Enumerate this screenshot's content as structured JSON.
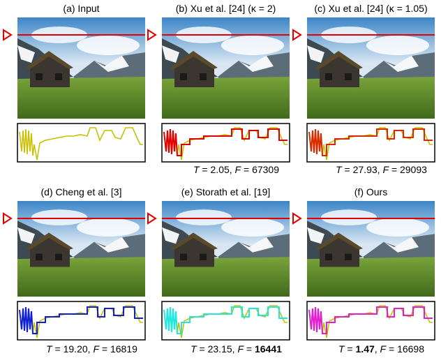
{
  "equals": " = ",
  "separator": ", ",
  "panels": [
    {
      "caption": "(a) Input",
      "curve_color": null,
      "stats": []
    },
    {
      "caption": "(b) Xu et al. [24] (κ = 2)",
      "curve_color": "#e00000",
      "stats": [
        {
          "label": "T",
          "value": "2.05",
          "bold": false
        },
        {
          "label": "F",
          "value": "67309",
          "bold": false
        }
      ]
    },
    {
      "caption": "(c) Xu et al. [24] (κ = 1.05)",
      "curve_color": "#d82a00",
      "stats": [
        {
          "label": "T",
          "value": "27.93",
          "bold": false
        },
        {
          "label": "F",
          "value": "29093",
          "bold": false
        }
      ]
    },
    {
      "caption": "(d) Cheng et al. [3]",
      "curve_color": "#1020d0",
      "stats": [
        {
          "label": "T",
          "value": "19.20",
          "bold": false
        },
        {
          "label": "F",
          "value": "16819",
          "bold": false
        }
      ]
    },
    {
      "caption": "(e) Storath et al. [19]",
      "curve_color": "#20e8e0",
      "stats": [
        {
          "label": "T",
          "value": "23.15",
          "bold": false
        },
        {
          "label": "F",
          "value": "16441",
          "bold": true
        }
      ]
    },
    {
      "caption": "(f) Ours",
      "curve_color": "#e020d0",
      "stats": [
        {
          "label": "T",
          "value": "1.47",
          "bold": true
        },
        {
          "label": "F",
          "value": "16698",
          "bold": false
        }
      ]
    }
  ]
}
